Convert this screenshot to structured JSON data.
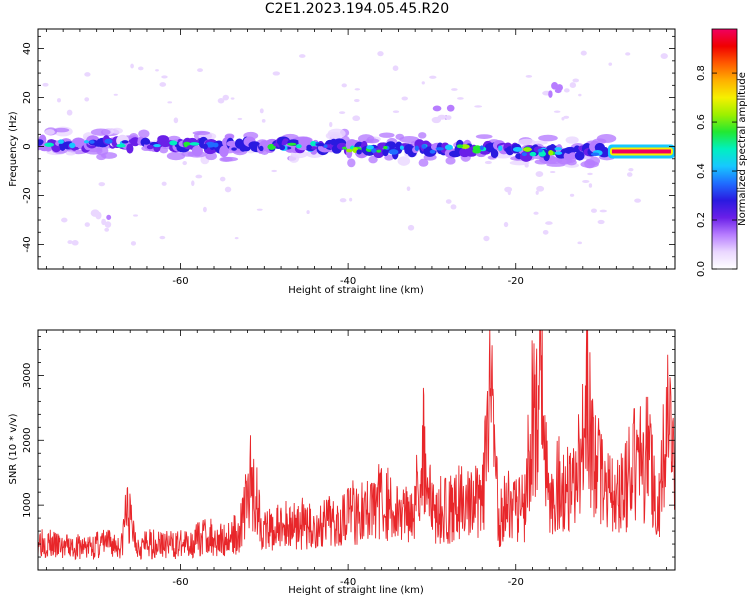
{
  "title": "C2E1.2023.194.05.45.R20",
  "colors": {
    "snr_line": "#e8262a",
    "axis": "#000000",
    "colormap": [
      "#ffffff",
      "#ead7ff",
      "#b77dff",
      "#6a1fe8",
      "#2a1ae0",
      "#1f6dff",
      "#17c8ff",
      "#00f0c0",
      "#22e832",
      "#9df000",
      "#f6f000",
      "#ffb000",
      "#ff5a00",
      "#f00000",
      "#f00060"
    ]
  },
  "chart_data": [
    {
      "type": "heatmap",
      "title": "C2E1.2023.194.05.45.R20",
      "xlabel": "Height of straight line (km)",
      "ylabel": "Frequency (Hz)",
      "xlim": [
        -77,
        -1
      ],
      "ylim": [
        -50,
        48
      ],
      "x_ticks": [
        -60,
        -40,
        -20
      ],
      "y_ticks": [
        -40,
        -20,
        0,
        20,
        40
      ],
      "colorbar": {
        "label": "Normalized spectral amplitude",
        "range": [
          0.0,
          0.98
        ],
        "ticks": [
          0.0,
          0.2,
          0.4,
          0.6,
          0.8
        ]
      },
      "bands": [
        {
          "x_start": -77,
          "x_end": -60,
          "freq_center": 1,
          "amplitude": 0.35
        },
        {
          "x_start": -60,
          "x_end": -40,
          "freq_center": 0,
          "amplitude": 0.38
        },
        {
          "x_start": -40,
          "x_end": -20,
          "freq_center": -1,
          "amplitude": 0.45
        },
        {
          "x_start": -20,
          "x_end": -9,
          "freq_center": -2,
          "amplitude": 0.45
        },
        {
          "x_start": -9,
          "x_end": -1,
          "freq_center": -2,
          "amplitude": 0.97
        }
      ],
      "blobs": [
        {
          "x": -15,
          "y": 24,
          "amplitude": 0.08
        },
        {
          "x": -28,
          "y": 13,
          "amplitude": 0.06
        },
        {
          "x": -70,
          "y": -29,
          "amplitude": 0.06
        }
      ],
      "grid": false
    },
    {
      "type": "line",
      "xlabel": "Height of straight line (km)",
      "ylabel": "SNR (10 * v/v)",
      "xlim": [
        -77,
        -1
      ],
      "ylim": [
        0,
        3700
      ],
      "x_ticks": [
        -60,
        -40,
        -20
      ],
      "y_ticks": [
        1000,
        2000,
        3000
      ],
      "grid": false,
      "series": [
        {
          "x": [
            -77,
            -75,
            -73,
            -71,
            -69,
            -67,
            -66.5,
            -65,
            -63,
            -61,
            -59,
            -57,
            -55,
            -53,
            -51.5,
            -50,
            -48,
            -46,
            -44,
            -42,
            -40,
            -38,
            -36,
            -34,
            -32,
            -31,
            -30,
            -28,
            -26,
            -24,
            -23,
            -22,
            -21,
            -19,
            -18,
            -17,
            -16,
            -15,
            -13,
            -11.5,
            -10,
            -8,
            -6,
            -4,
            -3,
            -2,
            -1
          ],
          "y": [
            600,
            450,
            420,
            430,
            500,
            450,
            1150,
            450,
            500,
            470,
            480,
            650,
            550,
            700,
            1700,
            700,
            800,
            900,
            750,
            900,
            1150,
            1050,
            1350,
            1000,
            1300,
            2300,
            1100,
            1150,
            1300,
            1200,
            3050,
            1000,
            1200,
            1150,
            2800,
            3700,
            1150,
            1600,
            1500,
            3050,
            1700,
            1300,
            1900,
            2100,
            1000,
            2700,
            1700
          ]
        }
      ]
    }
  ]
}
